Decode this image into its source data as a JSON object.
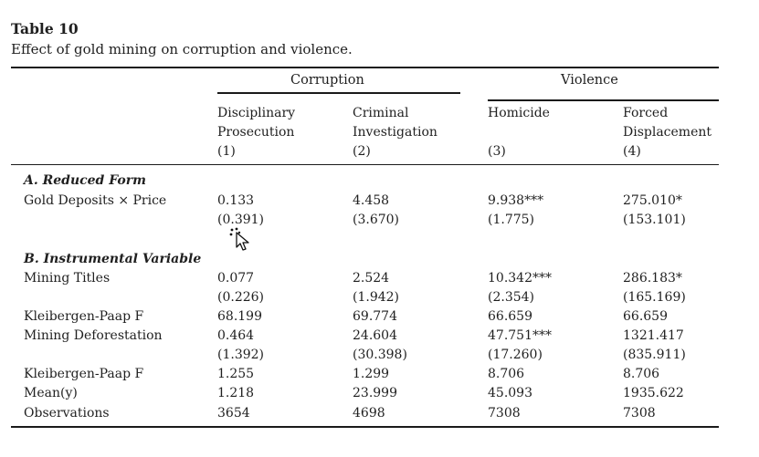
{
  "table": {
    "title": "Table 10",
    "caption": "Effect of gold mining on corruption and violence.",
    "groups": [
      "Corruption",
      "Violence"
    ],
    "columns": [
      [
        "Disciplinary",
        "Prosecution",
        "(1)"
      ],
      [
        "Criminal",
        "Investigation",
        "(2)"
      ],
      [
        "Homicide",
        "",
        "(3)"
      ],
      [
        "Forced",
        "Displacement",
        "(4)"
      ]
    ],
    "sections": [
      "A. Reduced Form",
      "B. Instrumental Variable"
    ],
    "rows": [
      {
        "label": "Gold Deposits × Price",
        "values": [
          "0.133",
          "4.458",
          "9.938***",
          "275.010*"
        ]
      },
      {
        "label": "",
        "values": [
          "(0.391)",
          "(3.670)",
          "(1.775)",
          "(153.101)"
        ]
      },
      {
        "label": "Mining Titles",
        "values": [
          "0.077",
          "2.524",
          "10.342***",
          "286.183*"
        ]
      },
      {
        "label": "",
        "values": [
          "(0.226)",
          "(1.942)",
          "(2.354)",
          "(165.169)"
        ]
      },
      {
        "label": "Kleibergen-Paap F",
        "values": [
          "68.199",
          "69.774",
          "66.659",
          "66.659"
        ]
      },
      {
        "label": "Mining Deforestation",
        "values": [
          "0.464",
          "24.604",
          "47.751***",
          "1321.417"
        ]
      },
      {
        "label": "",
        "values": [
          "(1.392)",
          "(30.398)",
          "(17.260)",
          "(835.911)"
        ]
      },
      {
        "label": "Kleibergen-Paap F",
        "values": [
          "1.255",
          "1.299",
          "8.706",
          "8.706"
        ]
      },
      {
        "label": "Mean(y)",
        "values": [
          "1.218",
          "23.999",
          "45.093",
          "1935.622"
        ]
      },
      {
        "label": "Observations",
        "values": [
          "3654",
          "4698",
          "7308",
          "7308"
        ]
      }
    ]
  }
}
